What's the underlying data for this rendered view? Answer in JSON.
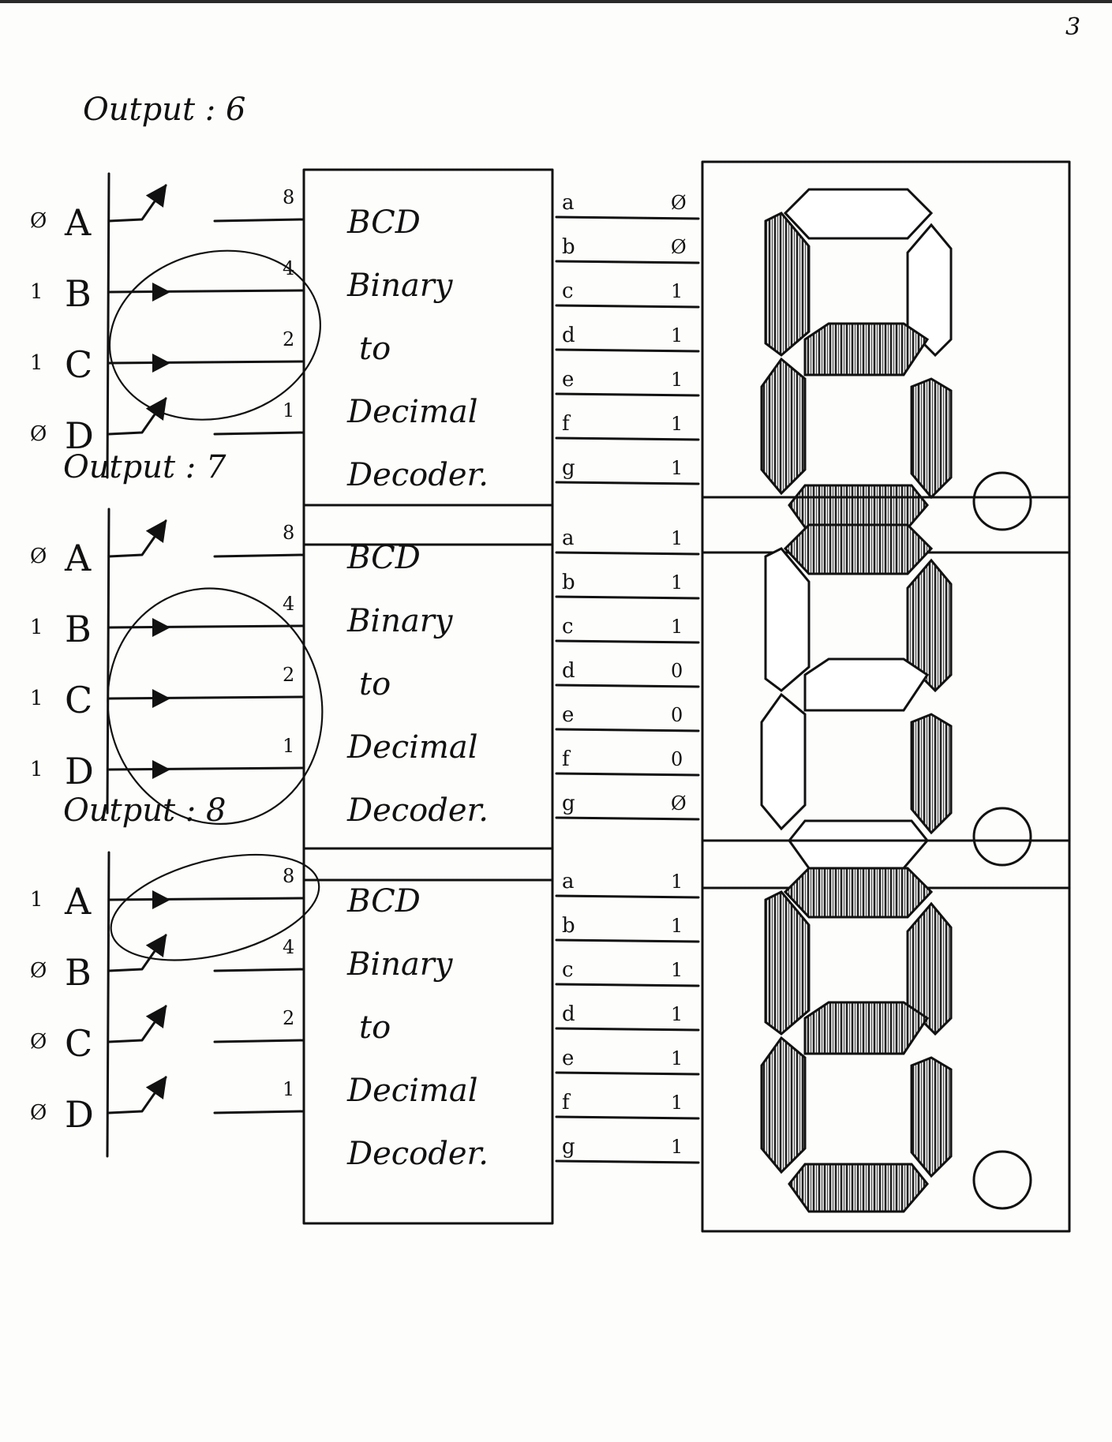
{
  "page_number": "3",
  "colors": {
    "ink": "#111111",
    "paper": "#fdfdfb",
    "hatch": "#222222"
  },
  "panels": [
    {
      "output_label": "Output : 6",
      "inputs": [
        {
          "bit": "Ø",
          "name": "A",
          "weight": "8",
          "active": false
        },
        {
          "bit": "1",
          "name": "B",
          "weight": "4",
          "active": true
        },
        {
          "bit": "1",
          "name": "C",
          "weight": "2",
          "active": true
        },
        {
          "bit": "Ø",
          "name": "D",
          "weight": "1",
          "active": false
        }
      ],
      "decoder": [
        "BCD",
        "Binary",
        "to",
        "Decimal",
        "Decoder."
      ],
      "outputs": [
        {
          "seg": "a",
          "val": "Ø"
        },
        {
          "seg": "b",
          "val": "Ø"
        },
        {
          "seg": "c",
          "val": "1"
        },
        {
          "seg": "d",
          "val": "1"
        },
        {
          "seg": "e",
          "val": "1"
        },
        {
          "seg": "f",
          "val": "1"
        },
        {
          "seg": "g",
          "val": "1"
        }
      ],
      "lit": {
        "top": false,
        "upper_left": true,
        "upper_right": false,
        "middle": true,
        "lower_left": true,
        "lower_right": true,
        "bottom": true
      }
    },
    {
      "output_label": "Output : 7",
      "inputs": [
        {
          "bit": "Ø",
          "name": "A",
          "weight": "8",
          "active": false
        },
        {
          "bit": "1",
          "name": "B",
          "weight": "4",
          "active": true
        },
        {
          "bit": "1",
          "name": "C",
          "weight": "2",
          "active": true
        },
        {
          "bit": "1",
          "name": "D",
          "weight": "1",
          "active": true
        }
      ],
      "decoder": [
        "BCD",
        "Binary",
        "to",
        "Decimal",
        "Decoder."
      ],
      "outputs": [
        {
          "seg": "a",
          "val": "1"
        },
        {
          "seg": "b",
          "val": "1"
        },
        {
          "seg": "c",
          "val": "1"
        },
        {
          "seg": "d",
          "val": "0"
        },
        {
          "seg": "e",
          "val": "0"
        },
        {
          "seg": "f",
          "val": "0"
        },
        {
          "seg": "g",
          "val": "Ø"
        }
      ],
      "lit": {
        "top": true,
        "upper_left": false,
        "upper_right": true,
        "middle": false,
        "lower_left": false,
        "lower_right": true,
        "bottom": false
      }
    },
    {
      "output_label": "Output : 8",
      "inputs": [
        {
          "bit": "1",
          "name": "A",
          "weight": "8",
          "active": true
        },
        {
          "bit": "Ø",
          "name": "B",
          "weight": "4",
          "active": false
        },
        {
          "bit": "Ø",
          "name": "C",
          "weight": "2",
          "active": false
        },
        {
          "bit": "Ø",
          "name": "D",
          "weight": "1",
          "active": false
        }
      ],
      "decoder": [
        "BCD",
        "Binary",
        "to",
        "Decimal",
        "Decoder."
      ],
      "outputs": [
        {
          "seg": "a",
          "val": "1"
        },
        {
          "seg": "b",
          "val": "1"
        },
        {
          "seg": "c",
          "val": "1"
        },
        {
          "seg": "d",
          "val": "1"
        },
        {
          "seg": "e",
          "val": "1"
        },
        {
          "seg": "f",
          "val": "1"
        },
        {
          "seg": "g",
          "val": "1"
        }
      ],
      "lit": {
        "top": true,
        "upper_left": true,
        "upper_right": true,
        "middle": true,
        "lower_left": true,
        "lower_right": true,
        "bottom": true
      }
    }
  ]
}
